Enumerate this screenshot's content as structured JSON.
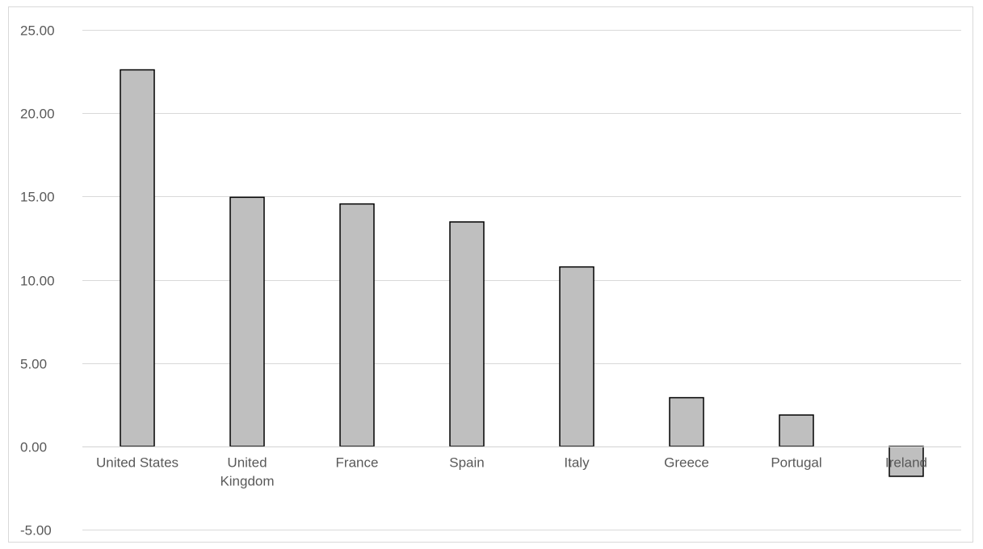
{
  "chart_data": {
    "type": "bar",
    "title": "",
    "xlabel": "",
    "ylabel": "",
    "categories": [
      "United States",
      "United Kingdom",
      "France",
      "Spain",
      "Italy",
      "Greece",
      "Portugal",
      "Ireland"
    ],
    "category_label_lines": [
      [
        "United States"
      ],
      [
        "United",
        "Kingdom"
      ],
      [
        "France"
      ],
      [
        "Spain"
      ],
      [
        "Italy"
      ],
      [
        "Greece"
      ],
      [
        "Portugal"
      ],
      [
        "Ireland"
      ]
    ],
    "values": [
      22.6,
      14.95,
      14.55,
      13.47,
      10.77,
      2.92,
      1.88,
      -1.8
    ],
    "ylim": [
      -5,
      25
    ],
    "yticks": [
      25,
      20,
      15,
      10,
      5,
      0,
      -5
    ],
    "ytick_labels": [
      "25.00",
      "20.00",
      "15.00",
      "10.00",
      "5.00",
      "0.00",
      "-5.00"
    ],
    "grid": true,
    "legend": "none",
    "colors": {
      "bar_fill": "#bfbfbf",
      "bar_stroke": "#000000",
      "grid": "#d9d9d9",
      "text": "#595959"
    }
  }
}
